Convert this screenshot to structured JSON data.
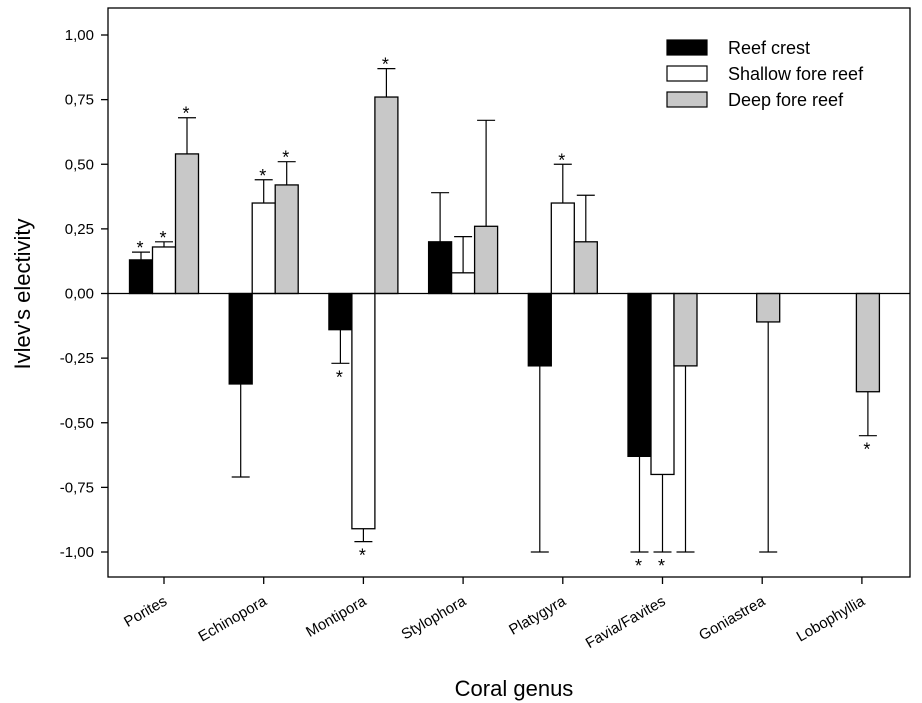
{
  "chart_data": {
    "type": "bar",
    "xlabel": "Coral genus",
    "ylabel": "Ivlev's electivity",
    "ylim": [
      -1.0,
      1.0
    ],
    "yticks": [
      1.0,
      0.75,
      0.5,
      0.25,
      0.0,
      -0.25,
      -0.5,
      -0.75,
      -1.0
    ],
    "ytick_labels": [
      "1,00",
      "0,75",
      "0,50",
      "0,25",
      "0,00",
      "-0,25",
      "-0,50",
      "-0,75",
      "-1,00"
    ],
    "categories": [
      "Porites",
      "Echinopora",
      "Montipora",
      "Stylophora",
      "Platygyra",
      "Favia/Favites",
      "Goniastrea",
      "Lobophyllia"
    ],
    "legend_position": "top-right",
    "grid": false,
    "significance_marker": "*",
    "series": [
      {
        "name": "Reef crest",
        "color": "#000000",
        "values": [
          0.13,
          -0.35,
          -0.14,
          0.2,
          -0.28,
          -0.63,
          null,
          null
        ],
        "error_tips": [
          0.16,
          -0.71,
          -0.27,
          0.39,
          -1.0,
          -1.0,
          null,
          null
        ],
        "significant": [
          true,
          false,
          true,
          false,
          false,
          true,
          false,
          false
        ]
      },
      {
        "name": "Shallow fore reef",
        "color": "#ffffff",
        "values": [
          0.18,
          0.35,
          -0.91,
          0.08,
          0.35,
          -0.7,
          null,
          null
        ],
        "error_tips": [
          0.2,
          0.44,
          -0.96,
          0.22,
          0.5,
          -1.0,
          null,
          null
        ],
        "significant": [
          true,
          true,
          true,
          false,
          true,
          true,
          false,
          false
        ]
      },
      {
        "name": "Deep fore reef",
        "color": "#c8c8c8",
        "values": [
          0.54,
          0.42,
          0.76,
          0.26,
          0.2,
          -0.28,
          -0.11,
          -0.38
        ],
        "error_tips": [
          0.68,
          0.51,
          0.87,
          0.67,
          0.38,
          -1.0,
          -1.0,
          -0.55
        ],
        "significant": [
          true,
          true,
          true,
          false,
          false,
          false,
          false,
          true
        ]
      }
    ]
  }
}
